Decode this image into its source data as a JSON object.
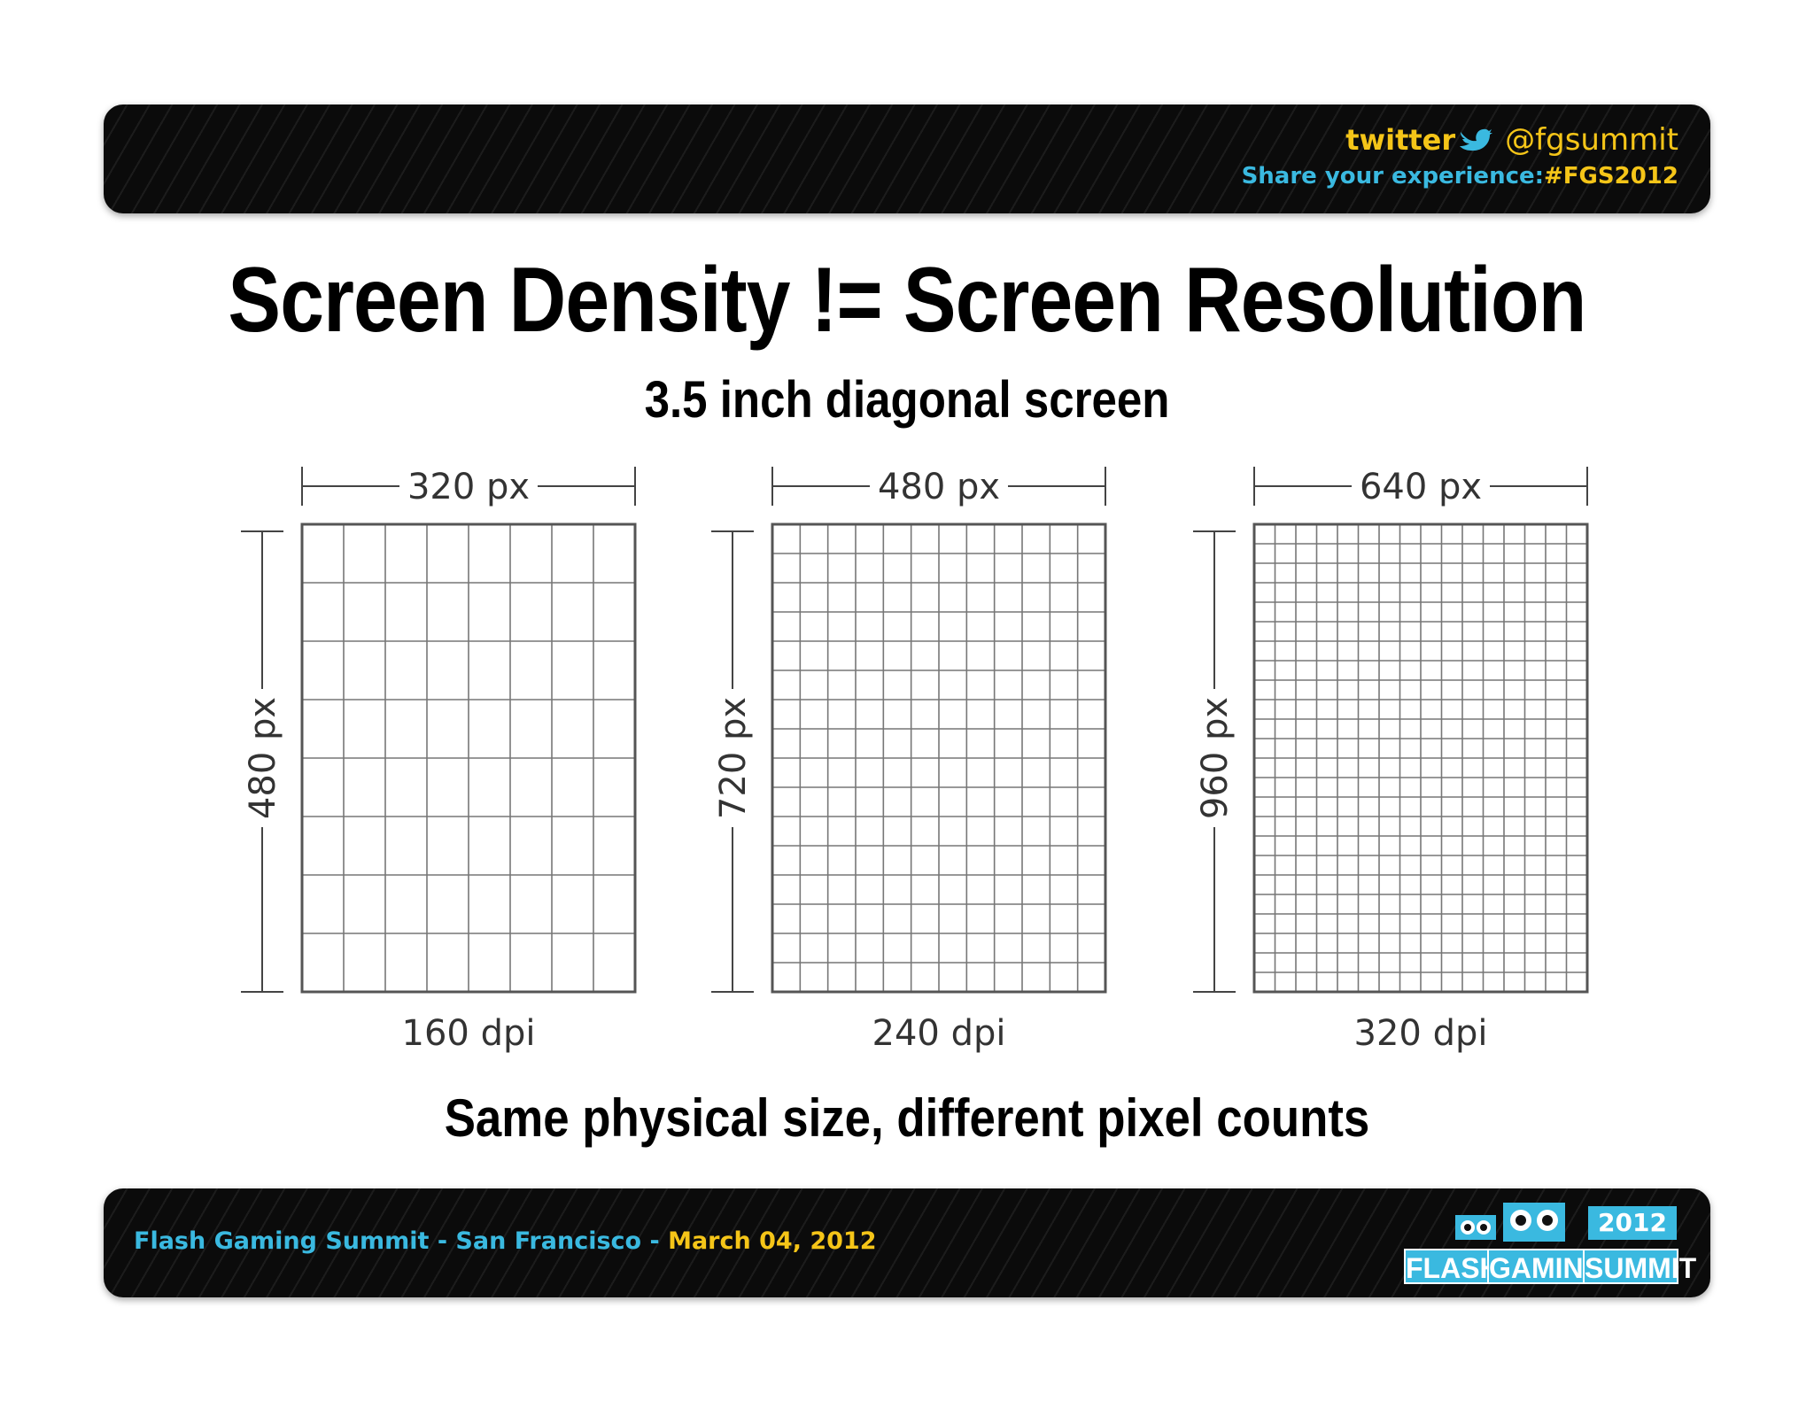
{
  "header": {
    "twitter_logo": "twitter",
    "handle": "@fgsummit",
    "share_text": "Share your experience:",
    "hashtag": "#FGS2012",
    "colors": {
      "yellow": "#f5c518",
      "blue": "#3ab9e0",
      "bar": "#0b0b0b"
    }
  },
  "title": "Screen Density != Screen Resolution",
  "subtitle": "3.5 inch diagonal screen",
  "screens": [
    {
      "width_label": "320 px",
      "height_label": "480 px",
      "dpi_label": "160 dpi",
      "cols": 8,
      "rows": 8
    },
    {
      "width_label": "480 px",
      "height_label": "720 px",
      "dpi_label": "240 dpi",
      "cols": 12,
      "rows": 16
    },
    {
      "width_label": "640 px",
      "height_label": "960 px",
      "dpi_label": "320 dpi",
      "cols": 16,
      "rows": 24
    }
  ],
  "caption": "Same physical size, different pixel counts",
  "footer": {
    "event": "Flash Gaming Summit - San Francisco - ",
    "date": "March 04, 2012",
    "logo_year": "2012",
    "logo_words": [
      "FLASH",
      "GAMING",
      "SUMMIT"
    ]
  }
}
